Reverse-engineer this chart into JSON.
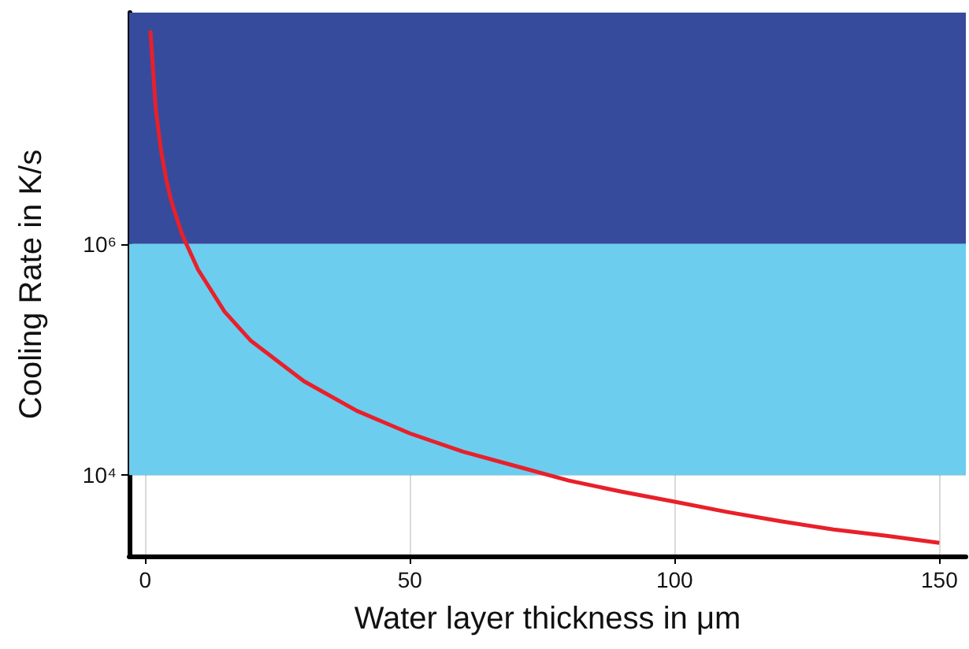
{
  "chart_data": {
    "type": "line",
    "xlabel": "Water layer thickness in μm",
    "ylabel": "Cooling Rate in K/s",
    "x": [
      1,
      2,
      3,
      4,
      5,
      7,
      10,
      15,
      20,
      30,
      40,
      50,
      60,
      70,
      80,
      90,
      100,
      110,
      120,
      130,
      140,
      150
    ],
    "series": [
      {
        "color": "#e8202a",
        "values": [
          70000000,
          15000000,
          6500000,
          3600000,
          2300000,
          1200000,
          600000,
          260000,
          145000,
          65000,
          36000,
          23000,
          16000,
          12000,
          9000,
          7200,
          5900,
          4800,
          4000,
          3400,
          3000,
          2600
        ]
      }
    ],
    "xlim": [
      -3,
      155
    ],
    "xticks": [
      0,
      50,
      100,
      150
    ],
    "ylim": [
      2000,
      100000000
    ],
    "yticks": [
      {
        "value": 10000,
        "label": "10⁴"
      },
      {
        "value": 1000000,
        "label": "10⁶"
      }
    ],
    "log": "y",
    "grid": true,
    "marker": "none",
    "line_style": "solid",
    "bands": [
      {
        "axis": "y",
        "from": 1000000,
        "to": 100000000,
        "color": "#364b9c"
      },
      {
        "axis": "y",
        "from": 10000,
        "to": 1000000,
        "color": "#6ccdef"
      }
    ]
  }
}
